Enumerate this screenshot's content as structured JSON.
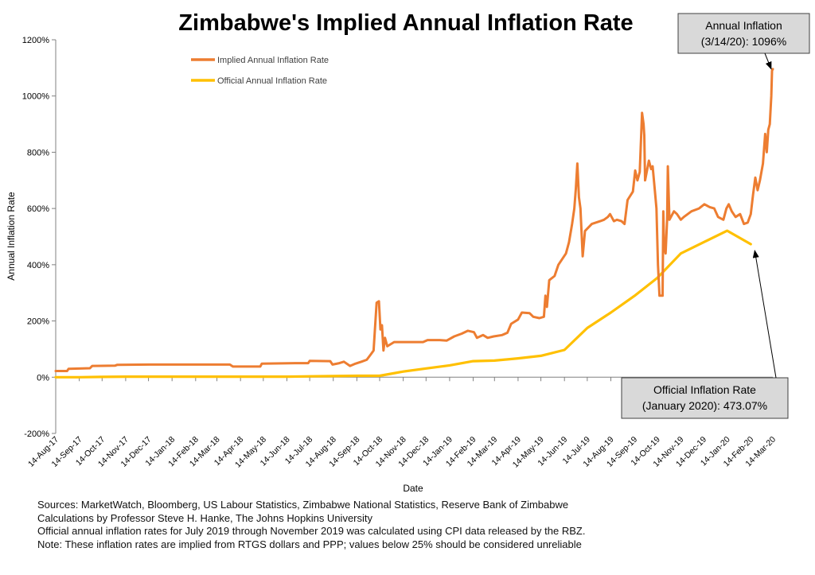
{
  "chart_data": {
    "type": "line",
    "title": "Zimbabwe's Implied Annual Inflation Rate",
    "xlabel": "Date",
    "ylabel": "Annual Inflation Rate",
    "ylim": [
      -200,
      1200
    ],
    "ytick_values": [
      -200,
      0,
      200,
      400,
      600,
      800,
      1000,
      1200
    ],
    "ytick_labels": [
      "-200%",
      "0%",
      "200%",
      "400%",
      "600%",
      "800%",
      "1000%",
      "1200%"
    ],
    "xlim": [
      "2017-08-14",
      "2020-03-14"
    ],
    "x_ticks": [
      {
        "date": "2017-08-14",
        "label": "14-Aug-17"
      },
      {
        "date": "2017-09-14",
        "label": "14-Sep-17"
      },
      {
        "date": "2017-10-14",
        "label": "14-Oct-17"
      },
      {
        "date": "2017-11-14",
        "label": "14-Nov-17"
      },
      {
        "date": "2017-12-14",
        "label": "14-Dec-17"
      },
      {
        "date": "2018-01-14",
        "label": "14-Jan-18"
      },
      {
        "date": "2018-02-14",
        "label": "14-Feb-18"
      },
      {
        "date": "2018-03-14",
        "label": "14-Mar-18"
      },
      {
        "date": "2018-04-14",
        "label": "14-Apr-18"
      },
      {
        "date": "2018-05-14",
        "label": "14-May-18"
      },
      {
        "date": "2018-06-14",
        "label": "14-Jun-18"
      },
      {
        "date": "2018-07-14",
        "label": "14-Jul-18"
      },
      {
        "date": "2018-08-14",
        "label": "14-Aug-18"
      },
      {
        "date": "2018-09-14",
        "label": "14-Sep-18"
      },
      {
        "date": "2018-10-14",
        "label": "14-Oct-18"
      },
      {
        "date": "2018-11-14",
        "label": "14-Nov-18"
      },
      {
        "date": "2018-12-14",
        "label": "14-Dec-18"
      },
      {
        "date": "2019-01-14",
        "label": "14-Jan-19"
      },
      {
        "date": "2019-02-14",
        "label": "14-Feb-19"
      },
      {
        "date": "2019-03-14",
        "label": "14-Mar-19"
      },
      {
        "date": "2019-04-14",
        "label": "14-Apr-19"
      },
      {
        "date": "2019-05-14",
        "label": "14-May-19"
      },
      {
        "date": "2019-06-14",
        "label": "14-Jun-19"
      },
      {
        "date": "2019-07-14",
        "label": "14-Jul-19"
      },
      {
        "date": "2019-08-14",
        "label": "14-Aug-19"
      },
      {
        "date": "2019-09-14",
        "label": "14-Sep-19"
      },
      {
        "date": "2019-10-14",
        "label": "14-Oct-19"
      },
      {
        "date": "2019-11-14",
        "label": "14-Nov-19"
      },
      {
        "date": "2019-12-14",
        "label": "14-Dec-19"
      },
      {
        "date": "2020-01-14",
        "label": "14-Jan-20"
      },
      {
        "date": "2020-02-14",
        "label": "14-Feb-20"
      },
      {
        "date": "2020-03-14",
        "label": "14-Mar-20"
      }
    ],
    "grid": false,
    "legend_position": "top-left",
    "series": [
      {
        "name": "Implied Annual Inflation Rate",
        "color": "#ed7d31",
        "points": [
          [
            "2017-08-14",
            22
          ],
          [
            "2017-08-29",
            22
          ],
          [
            "2017-08-31",
            30
          ],
          [
            "2017-09-28",
            32
          ],
          [
            "2017-10-01",
            40
          ],
          [
            "2017-10-31",
            41
          ],
          [
            "2017-11-03",
            44
          ],
          [
            "2017-12-15",
            45
          ],
          [
            "2018-01-20",
            45
          ],
          [
            "2018-02-25",
            45
          ],
          [
            "2018-03-31",
            45
          ],
          [
            "2018-04-04",
            38
          ],
          [
            "2018-05-10",
            38
          ],
          [
            "2018-05-12",
            48
          ],
          [
            "2018-06-25",
            50
          ],
          [
            "2018-07-12",
            50
          ],
          [
            "2018-07-14",
            58
          ],
          [
            "2018-08-10",
            57
          ],
          [
            "2018-08-13",
            45
          ],
          [
            "2018-08-22",
            50
          ],
          [
            "2018-08-28",
            55
          ],
          [
            "2018-09-05",
            40
          ],
          [
            "2018-09-12",
            48
          ],
          [
            "2018-09-20",
            55
          ],
          [
            "2018-09-27",
            62
          ],
          [
            "2018-10-02",
            80
          ],
          [
            "2018-10-06",
            95
          ],
          [
            "2018-10-10",
            265
          ],
          [
            "2018-10-13",
            270
          ],
          [
            "2018-10-15",
            170
          ],
          [
            "2018-10-17",
            185
          ],
          [
            "2018-10-19",
            95
          ],
          [
            "2018-10-21",
            140
          ],
          [
            "2018-10-24",
            110
          ],
          [
            "2018-11-02",
            125
          ],
          [
            "2018-12-10",
            125
          ],
          [
            "2018-12-16",
            132
          ],
          [
            "2019-01-01",
            132
          ],
          [
            "2019-01-10",
            130
          ],
          [
            "2019-01-20",
            145
          ],
          [
            "2019-01-30",
            155
          ],
          [
            "2019-02-07",
            165
          ],
          [
            "2019-02-15",
            160
          ],
          [
            "2019-02-19",
            140
          ],
          [
            "2019-02-27",
            150
          ],
          [
            "2019-03-05",
            140
          ],
          [
            "2019-03-13",
            145
          ],
          [
            "2019-03-24",
            150
          ],
          [
            "2019-03-31",
            158
          ],
          [
            "2019-04-05",
            190
          ],
          [
            "2019-04-14",
            205
          ],
          [
            "2019-04-19",
            230
          ],
          [
            "2019-04-29",
            228
          ],
          [
            "2019-05-04",
            215
          ],
          [
            "2019-05-12",
            210
          ],
          [
            "2019-05-18",
            215
          ],
          [
            "2019-05-20",
            290
          ],
          [
            "2019-05-22",
            250
          ],
          [
            "2019-05-25",
            345
          ],
          [
            "2019-06-01",
            360
          ],
          [
            "2019-06-06",
            400
          ],
          [
            "2019-06-16",
            440
          ],
          [
            "2019-06-20",
            480
          ],
          [
            "2019-06-24",
            545
          ],
          [
            "2019-06-27",
            600
          ],
          [
            "2019-06-29",
            670
          ],
          [
            "2019-07-01",
            760
          ],
          [
            "2019-07-03",
            640
          ],
          [
            "2019-07-05",
            600
          ],
          [
            "2019-07-08",
            430
          ],
          [
            "2019-07-11",
            520
          ],
          [
            "2019-07-20",
            545
          ],
          [
            "2019-07-31",
            555
          ],
          [
            "2019-08-05",
            560
          ],
          [
            "2019-08-10",
            570
          ],
          [
            "2019-08-13",
            580
          ],
          [
            "2019-08-18",
            555
          ],
          [
            "2019-08-22",
            560
          ],
          [
            "2019-08-28",
            555
          ],
          [
            "2019-09-01",
            545
          ],
          [
            "2019-09-05",
            630
          ],
          [
            "2019-09-12",
            660
          ],
          [
            "2019-09-15",
            735
          ],
          [
            "2019-09-18",
            700
          ],
          [
            "2019-09-21",
            730
          ],
          [
            "2019-09-24",
            940
          ],
          [
            "2019-09-26",
            900
          ],
          [
            "2019-09-27",
            860
          ],
          [
            "2019-09-28",
            700
          ],
          [
            "2019-10-03",
            770
          ],
          [
            "2019-10-06",
            740
          ],
          [
            "2019-10-08",
            750
          ],
          [
            "2019-10-11",
            660
          ],
          [
            "2019-10-13",
            600
          ],
          [
            "2019-10-15",
            400
          ],
          [
            "2019-10-17",
            290
          ],
          [
            "2019-10-21",
            290
          ],
          [
            "2019-10-22",
            590
          ],
          [
            "2019-10-23",
            470
          ],
          [
            "2019-10-25",
            440
          ],
          [
            "2019-10-27",
            560
          ],
          [
            "2019-10-28",
            750
          ],
          [
            "2019-10-30",
            560
          ],
          [
            "2019-11-05",
            590
          ],
          [
            "2019-11-09",
            580
          ],
          [
            "2019-11-14",
            560
          ],
          [
            "2019-11-18",
            570
          ],
          [
            "2019-11-28",
            590
          ],
          [
            "2019-12-08",
            600
          ],
          [
            "2019-12-15",
            615
          ],
          [
            "2019-12-22",
            605
          ],
          [
            "2019-12-28",
            600
          ],
          [
            "2020-01-02",
            570
          ],
          [
            "2020-01-09",
            560
          ],
          [
            "2020-01-13",
            600
          ],
          [
            "2020-01-16",
            615
          ],
          [
            "2020-01-20",
            590
          ],
          [
            "2020-01-25",
            570
          ],
          [
            "2020-01-31",
            580
          ],
          [
            "2020-02-05",
            545
          ],
          [
            "2020-02-10",
            550
          ],
          [
            "2020-02-14",
            580
          ],
          [
            "2020-02-17",
            650
          ],
          [
            "2020-02-20",
            710
          ],
          [
            "2020-02-23",
            665
          ],
          [
            "2020-02-26",
            700
          ],
          [
            "2020-03-01",
            760
          ],
          [
            "2020-03-04",
            865
          ],
          [
            "2020-03-06",
            800
          ],
          [
            "2020-03-08",
            880
          ],
          [
            "2020-03-10",
            900
          ],
          [
            "2020-03-12",
            1000
          ],
          [
            "2020-03-13",
            1090
          ],
          [
            "2020-03-14",
            1096
          ]
        ]
      },
      {
        "name": "Official Annual Inflation Rate",
        "color": "#ffc000",
        "points": [
          [
            "2017-08-14",
            0
          ],
          [
            "2017-09-14",
            0
          ],
          [
            "2017-10-14",
            1
          ],
          [
            "2017-11-14",
            2
          ],
          [
            "2017-12-14",
            2
          ],
          [
            "2018-01-14",
            2
          ],
          [
            "2018-02-14",
            2
          ],
          [
            "2018-03-14",
            2
          ],
          [
            "2018-04-14",
            2
          ],
          [
            "2018-05-14",
            2
          ],
          [
            "2018-06-14",
            2
          ],
          [
            "2018-07-14",
            3
          ],
          [
            "2018-08-14",
            4
          ],
          [
            "2018-09-14",
            5
          ],
          [
            "2018-10-14",
            5
          ],
          [
            "2018-11-14",
            20
          ],
          [
            "2018-12-14",
            31
          ],
          [
            "2019-01-14",
            42
          ],
          [
            "2019-02-14",
            57
          ],
          [
            "2019-03-14",
            59
          ],
          [
            "2019-04-14",
            67
          ],
          [
            "2019-05-14",
            76
          ],
          [
            "2019-06-14",
            97
          ],
          [
            "2019-07-14",
            175
          ],
          [
            "2019-08-14",
            230
          ],
          [
            "2019-09-14",
            289
          ],
          [
            "2019-10-14",
            353
          ],
          [
            "2019-11-14",
            440
          ],
          [
            "2019-12-14",
            480
          ],
          [
            "2020-01-14",
            521
          ],
          [
            "2020-02-14",
            473
          ]
        ]
      }
    ],
    "annotations": [
      {
        "lines": [
          "Annual Inflation",
          "(3/14/20): 1096%"
        ],
        "target": [
          "2020-03-14",
          1096
        ]
      },
      {
        "lines": [
          "Official Inflation Rate",
          "(January 2020): 473.07%"
        ],
        "target": [
          "2020-02-14",
          473
        ]
      }
    ]
  },
  "footnotes": [
    "Sources: MarketWatch, Bloomberg, US Labour Statistics, Zimbabwe National Statistics, Reserve Bank of Zimbabwe",
    "Calculations by Professor Steve H. Hanke, The Johns Hopkins University",
    "Official annual inflation rates for July 2019 through November 2019 was calculated using CPI data released by the RBZ.",
    "Note: These inflation rates are implied from RTGS dollars and PPP; values below 25% should be considered unreliable"
  ]
}
